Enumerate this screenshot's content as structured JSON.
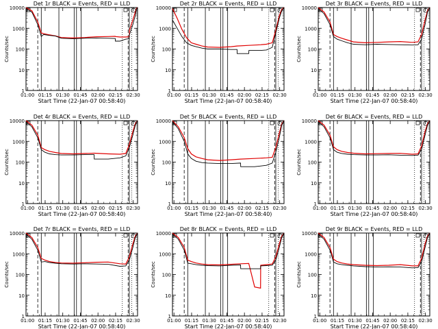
{
  "shared": {
    "ylabel": "Counts/sec",
    "xlabel": "Start Time (22-Jan-07 00:58:40)",
    "x_ticks": [
      "01:00",
      "01:15",
      "01:30",
      "01:45",
      "02:00",
      "02:15",
      "02:30"
    ],
    "y_ticks": [
      "1",
      "10",
      "100",
      "1000",
      "10000"
    ],
    "series_colors": {
      "events": "#000000",
      "lld": "#e00000"
    },
    "corner_marks": [
      "S",
      "S",
      "S"
    ]
  },
  "chart_data": [
    {
      "type": "line",
      "title": "Det 1r BLACK = Events, RED = LLD",
      "x_minutes": [
        0,
        5,
        10,
        13,
        15,
        20,
        25,
        30,
        40,
        50,
        60,
        70,
        76,
        76.1,
        80,
        85,
        88,
        88.1,
        91,
        93,
        94,
        95
      ],
      "series": [
        {
          "name": "",
          "color": "#000000",
          "values": [
            9000,
            6000,
            1500,
            400,
            500,
            450,
            420,
            330,
            310,
            330,
            340,
            330,
            320,
            240,
            240,
            300,
            310,
            500,
            1500,
            4000,
            8000,
            10000
          ]
        },
        {
          "name": "",
          "color": "#e00000",
          "values": [
            10000,
            7000,
            2000,
            600,
            550,
            480,
            430,
            360,
            340,
            360,
            390,
            400,
            410,
            400,
            380,
            380,
            390,
            800,
            2500,
            6000,
            9000,
            10000
          ]
        }
      ],
      "vlines_dashed": [
        10,
        87
      ],
      "vlines_solid": [
        13,
        28,
        41,
        43,
        47,
        88
      ],
      "vlines_dotted": [
        82,
        90
      ],
      "xlim": [
        0,
        95
      ],
      "ylim": [
        1,
        10000
      ],
      "log_y": true
    },
    {
      "type": "line",
      "title": "Det 2r BLACK = Events, RED = LLD",
      "x_minutes": [
        0,
        4,
        8,
        12,
        16,
        20,
        25,
        30,
        40,
        50,
        55,
        55.1,
        65,
        65.1,
        75,
        80,
        85,
        88,
        91,
        93,
        95
      ],
      "series": [
        {
          "name": "",
          "color": "#000000",
          "values": [
            2500,
            1000,
            400,
            200,
            150,
            130,
            110,
            100,
            100,
            95,
            95,
            60,
            60,
            85,
            85,
            90,
            120,
            600,
            3000,
            7000,
            10000
          ]
        },
        {
          "name": "",
          "color": "#e00000",
          "values": [
            9000,
            3000,
            900,
            350,
            200,
            170,
            140,
            125,
            120,
            130,
            140,
            140,
            150,
            150,
            160,
            170,
            200,
            800,
            4000,
            8000,
            10000
          ]
        }
      ],
      "vlines_dashed": [
        10,
        87
      ],
      "vlines_solid": [
        13,
        28,
        41,
        43,
        47,
        88
      ],
      "vlines_dotted": [
        82,
        90
      ],
      "xlim": [
        0,
        95
      ],
      "ylim": [
        1,
        10000
      ],
      "log_y": true
    },
    {
      "type": "line",
      "title": "Det 3r BLACK = Events, RED = LLD",
      "x_minutes": [
        0,
        5,
        10,
        13,
        16,
        20,
        25,
        30,
        40,
        50,
        60,
        70,
        80,
        85,
        88,
        91,
        93,
        95
      ],
      "series": [
        {
          "name": "",
          "color": "#000000",
          "values": [
            9000,
            5000,
            1500,
            400,
            300,
            250,
            200,
            170,
            160,
            170,
            165,
            160,
            155,
            160,
            300,
            1500,
            6000,
            10000
          ]
        },
        {
          "name": "",
          "color": "#e00000",
          "values": [
            10000,
            6000,
            2000,
            500,
            400,
            330,
            270,
            220,
            200,
            210,
            220,
            230,
            210,
            220,
            500,
            2500,
            7000,
            10000
          ]
        }
      ],
      "vlines_dashed": [
        10,
        87
      ],
      "vlines_solid": [
        13,
        28,
        41,
        43,
        47,
        88
      ],
      "vlines_dotted": [
        82,
        90
      ],
      "xlim": [
        0,
        95
      ],
      "ylim": [
        1,
        10000
      ],
      "log_y": true
    },
    {
      "type": "line",
      "title": "Det 4r BLACK = Events, RED = LLD",
      "x_minutes": [
        0,
        5,
        10,
        13,
        16,
        20,
        25,
        30,
        40,
        50,
        58,
        58.1,
        70,
        80,
        85,
        88,
        91,
        93,
        95
      ],
      "series": [
        {
          "name": "",
          "color": "#000000",
          "values": [
            9000,
            5000,
            1500,
            400,
            300,
            250,
            230,
            220,
            220,
            230,
            230,
            140,
            140,
            160,
            200,
            500,
            2000,
            6000,
            10000
          ]
        },
        {
          "name": "",
          "color": "#e00000",
          "values": [
            10000,
            6000,
            2000,
            500,
            400,
            330,
            290,
            260,
            250,
            260,
            270,
            270,
            250,
            240,
            260,
            700,
            3000,
            7000,
            10000
          ]
        }
      ],
      "vlines_dashed": [
        10,
        87
      ],
      "vlines_solid": [
        13,
        28,
        41,
        43,
        47,
        88
      ],
      "vlines_dotted": [
        82,
        90
      ],
      "xlim": [
        0,
        95
      ],
      "ylim": [
        1,
        10000
      ],
      "log_y": true
    },
    {
      "type": "line",
      "title": "Det 5r BLACK = Events, RED = LLD",
      "x_minutes": [
        0,
        5,
        10,
        13,
        16,
        20,
        25,
        30,
        40,
        50,
        58,
        58.1,
        70,
        80,
        85,
        88,
        91,
        93,
        95
      ],
      "series": [
        {
          "name": "",
          "color": "#000000",
          "values": [
            9000,
            4000,
            1000,
            250,
            150,
            110,
            95,
            90,
            85,
            85,
            90,
            60,
            60,
            70,
            90,
            300,
            1500,
            6000,
            10000
          ]
        },
        {
          "name": "",
          "color": "#e00000",
          "values": [
            10000,
            5000,
            1500,
            450,
            250,
            180,
            150,
            130,
            120,
            130,
            140,
            140,
            150,
            160,
            170,
            500,
            2500,
            7000,
            10000
          ]
        }
      ],
      "vlines_dashed": [
        10,
        87
      ],
      "vlines_solid": [
        13,
        28,
        41,
        43,
        47,
        88
      ],
      "vlines_dotted": [
        82,
        90
      ],
      "xlim": [
        0,
        95
      ],
      "ylim": [
        1,
        10000
      ],
      "log_y": true
    },
    {
      "type": "line",
      "title": "Det 6r BLACK = Events, RED = LLD",
      "x_minutes": [
        0,
        5,
        10,
        13,
        16,
        20,
        25,
        30,
        40,
        50,
        60,
        70,
        80,
        85,
        88,
        91,
        93,
        95
      ],
      "series": [
        {
          "name": "",
          "color": "#000000",
          "values": [
            9000,
            5000,
            1500,
            400,
            300,
            260,
            240,
            230,
            220,
            220,
            225,
            215,
            210,
            215,
            400,
            2000,
            6000,
            10000
          ]
        },
        {
          "name": "",
          "color": "#e00000",
          "values": [
            10000,
            6000,
            2000,
            550,
            400,
            330,
            290,
            270,
            250,
            255,
            260,
            265,
            240,
            250,
            600,
            3000,
            7000,
            10000
          ]
        }
      ],
      "vlines_dashed": [
        10,
        87
      ],
      "vlines_solid": [
        13,
        28,
        41,
        43,
        47,
        88
      ],
      "vlines_dotted": [
        82,
        90
      ],
      "xlim": [
        0,
        95
      ],
      "ylim": [
        1,
        10000
      ],
      "log_y": true
    },
    {
      "type": "line",
      "title": "Det 7r BLACK = Events, RED = LLD",
      "x_minutes": [
        0,
        5,
        10,
        13,
        16,
        20,
        25,
        30,
        40,
        50,
        60,
        70,
        80,
        85,
        88,
        91,
        93,
        95
      ],
      "series": [
        {
          "name": "",
          "color": "#000000",
          "values": [
            9000,
            5000,
            1500,
            400,
            420,
            380,
            350,
            330,
            320,
            330,
            320,
            310,
            250,
            260,
            500,
            2000,
            6000,
            10000
          ]
        },
        {
          "name": "",
          "color": "#e00000",
          "values": [
            10000,
            6000,
            2000,
            600,
            500,
            420,
            380,
            360,
            350,
            370,
            390,
            400,
            330,
            320,
            700,
            3000,
            7000,
            10000
          ]
        }
      ],
      "vlines_dashed": [
        10,
        87
      ],
      "vlines_solid": [
        13,
        28,
        41,
        43,
        47,
        88
      ],
      "vlines_dotted": [
        82,
        90
      ],
      "xlim": [
        0,
        95
      ],
      "ylim": [
        1,
        10000
      ],
      "log_y": true
    },
    {
      "type": "line",
      "title": "Det 8r BLACK = Events, RED = LLD",
      "x_minutes": [
        0,
        5,
        10,
        13,
        16,
        20,
        25,
        30,
        40,
        50,
        58,
        58.1,
        65,
        70,
        75,
        75.1,
        80,
        85,
        88,
        91,
        93,
        95
      ],
      "series": [
        {
          "name": "",
          "color": "#000000",
          "values": [
            9000,
            5000,
            1500,
            350,
            330,
            300,
            280,
            270,
            260,
            280,
            290,
            190,
            190,
            190,
            190,
            260,
            270,
            280,
            500,
            2000,
            6000,
            10000
          ]
        },
        {
          "name": "",
          "color": "#e00000",
          "values": [
            10000,
            6000,
            2000,
            500,
            420,
            360,
            320,
            300,
            290,
            310,
            330,
            330,
            340,
            25,
            22,
            280,
            300,
            320,
            700,
            3000,
            7000,
            10000
          ]
        }
      ],
      "vlines_dashed": [
        10,
        87
      ],
      "vlines_solid": [
        13,
        28,
        41,
        43,
        47,
        88
      ],
      "vlines_dotted": [
        82,
        90
      ],
      "xlim": [
        0,
        95
      ],
      "ylim": [
        1,
        10000
      ],
      "log_y": true
    },
    {
      "type": "line",
      "title": "Det 9r BLACK = Events, RED = LLD",
      "x_minutes": [
        0,
        5,
        10,
        13,
        16,
        20,
        25,
        30,
        40,
        50,
        60,
        70,
        80,
        85,
        88,
        91,
        93,
        95
      ],
      "series": [
        {
          "name": "",
          "color": "#000000",
          "values": [
            9000,
            5000,
            1500,
            400,
            330,
            300,
            280,
            260,
            240,
            230,
            235,
            230,
            210,
            215,
            400,
            2000,
            6000,
            10000
          ]
        },
        {
          "name": "",
          "color": "#e00000",
          "values": [
            10000,
            6000,
            2000,
            550,
            420,
            360,
            320,
            300,
            280,
            270,
            280,
            300,
            260,
            260,
            600,
            3000,
            7000,
            10000
          ]
        }
      ],
      "vlines_dashed": [
        10,
        87
      ],
      "vlines_solid": [
        13,
        28,
        41,
        43,
        47,
        88
      ],
      "vlines_dotted": [
        82,
        90
      ],
      "xlim": [
        0,
        95
      ],
      "ylim": [
        1,
        10000
      ],
      "log_y": true
    }
  ]
}
